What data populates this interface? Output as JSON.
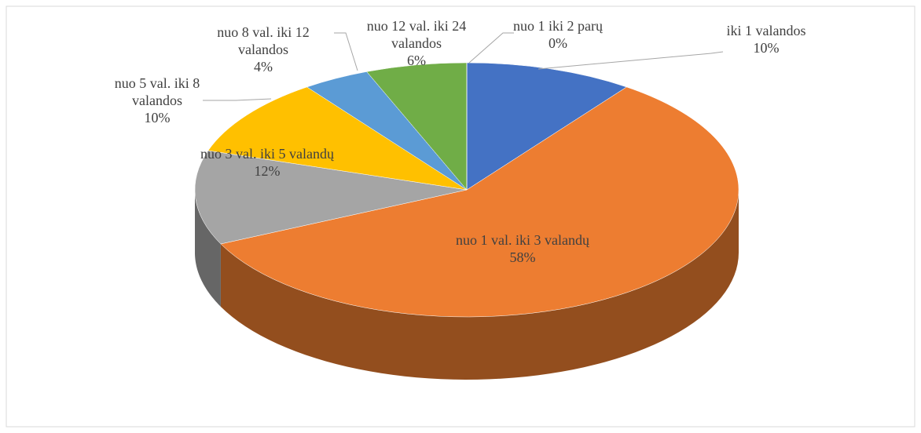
{
  "chart_data": {
    "type": "pie3d",
    "categories": [
      "iki 1 valandos",
      "nuo 1 val. iki 3 valandų",
      "nuo 3 val. iki 5 valandų",
      "nuo 5 val. iki 8 valandos",
      "nuo 8 val. iki 12 valandos",
      "nuo 12 val. iki 24 valandos",
      "nuo 1 iki 2 parų"
    ],
    "values": [
      10,
      58,
      12,
      10,
      4,
      6,
      0
    ],
    "value_labels": [
      "10%",
      "58%",
      "12%",
      "10%",
      "4%",
      "6%",
      "0%"
    ],
    "colors": [
      "#4472c4",
      "#ed7d31",
      "#a5a5a5",
      "#ffc000",
      "#5b9bd5",
      "#70ad47",
      "#264478"
    ]
  }
}
